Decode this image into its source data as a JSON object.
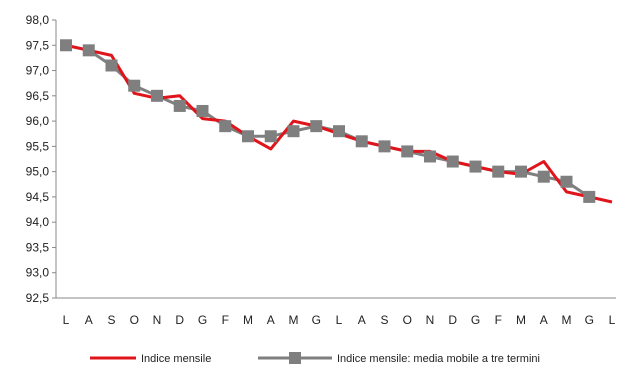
{
  "chart_data": {
    "type": "line",
    "categories": [
      "L",
      "A",
      "S",
      "O",
      "N",
      "D",
      "G",
      "F",
      "M",
      "A",
      "M",
      "G",
      "L",
      "A",
      "S",
      "O",
      "N",
      "D",
      "G",
      "F",
      "M",
      "A",
      "M",
      "G",
      "L"
    ],
    "ylim": [
      92.5,
      98.0
    ],
    "yticks": [
      "98,0",
      "97,5",
      "97,0",
      "96,5",
      "96,0",
      "95,5",
      "95,0",
      "94,5",
      "94,0",
      "93,5",
      "93,0",
      "92,5"
    ],
    "ytick_values": [
      98.0,
      97.5,
      97.0,
      96.5,
      96.0,
      95.5,
      95.0,
      94.5,
      94.0,
      93.5,
      93.0,
      92.5
    ],
    "grid": false,
    "legend_position": "bottom",
    "series": [
      {
        "name": "Indice mensile",
        "color": "#e0141b",
        "values": [
          97.5,
          97.4,
          97.3,
          96.55,
          96.45,
          96.5,
          96.05,
          96.0,
          95.7,
          95.45,
          96.0,
          95.9,
          95.75,
          95.6,
          95.5,
          95.4,
          95.4,
          95.2,
          95.1,
          95.0,
          94.95,
          95.2,
          94.6,
          94.5,
          94.4
        ]
      },
      {
        "name": "Indice mensile: media mobile a tre termini",
        "color": "#7f7f7f",
        "marker": "square",
        "values": [
          97.5,
          97.4,
          97.1,
          96.7,
          96.5,
          96.3,
          96.2,
          95.9,
          95.7,
          95.7,
          95.8,
          95.9,
          95.8,
          95.6,
          95.5,
          95.4,
          95.3,
          95.2,
          95.1,
          95.0,
          95.0,
          94.9,
          94.8,
          94.5,
          null
        ]
      }
    ]
  }
}
